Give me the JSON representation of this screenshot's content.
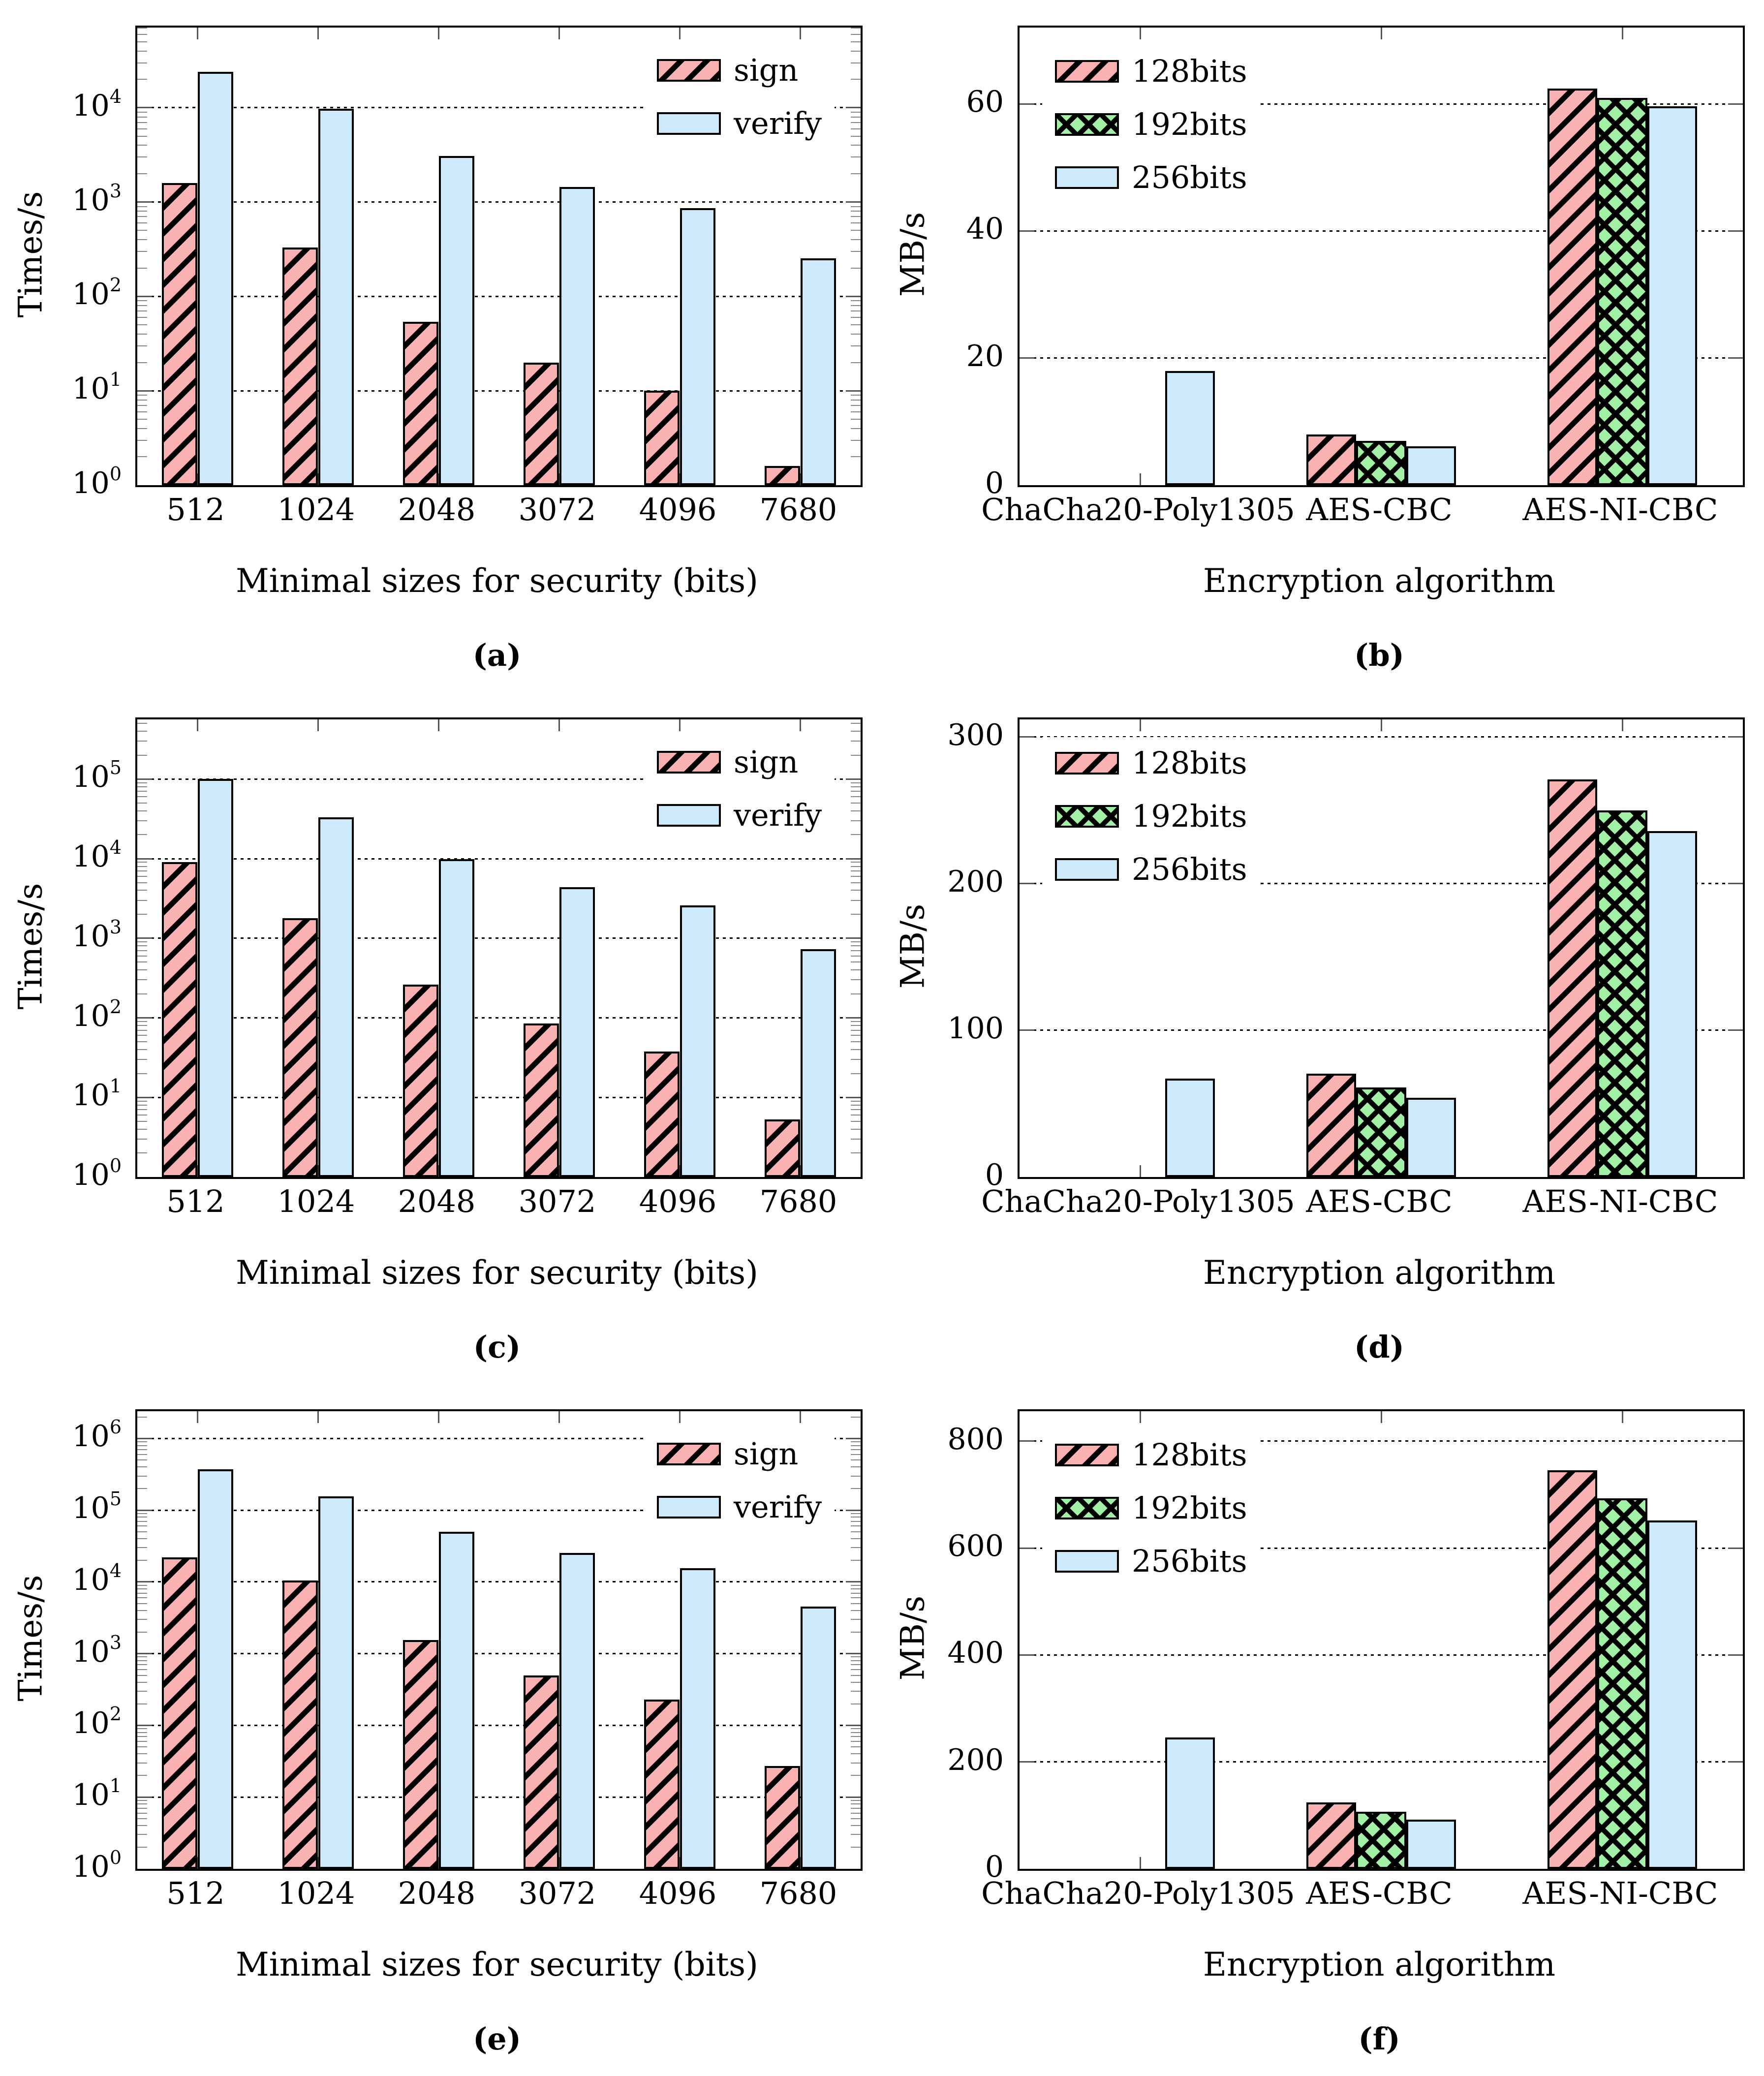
{
  "palette": {
    "sign_128_fill": "#F9B1B1",
    "bits192_fill": "#A2F0A6",
    "verify_256_fill": "#CEE9F9",
    "hatch_color": "#000000",
    "axis_color": "#000000",
    "background": "#FFFFFF"
  },
  "chart_data": [
    {
      "id": "a",
      "type": "bar",
      "scale": "log",
      "caption": "(a)",
      "ylabel": "Times/s",
      "xlabel": "Minimal sizes for security (bits)",
      "categories": [
        "512",
        "1024",
        "2048",
        "3072",
        "4096",
        "7680"
      ],
      "grid": "horizontal-dotted",
      "legend_position": "top-right",
      "y_ticks": [
        {
          "base": "10",
          "exp": "0"
        },
        {
          "base": "10",
          "exp": "1"
        },
        {
          "base": "10",
          "exp": "2"
        },
        {
          "base": "10",
          "exp": "3"
        },
        {
          "base": "10",
          "exp": "4"
        }
      ],
      "ylim_log10": [
        0,
        4.85
      ],
      "series": [
        {
          "name": "sign",
          "hatch": "diagonal",
          "fill": "#F9B1B1",
          "values": [
            1600,
            330,
            54,
            20,
            10,
            1.6
          ]
        },
        {
          "name": "verify",
          "hatch": "none",
          "fill": "#CEE9F9",
          "values": [
            24000,
            9800,
            3100,
            1450,
            860,
            255
          ]
        }
      ]
    },
    {
      "id": "b",
      "type": "bar",
      "scale": "linear",
      "caption": "(b)",
      "ylabel": "MB/s",
      "xlabel": "Encryption algorithm",
      "categories": [
        "ChaCha20-Poly1305",
        "AES-CBC",
        "AES-NI-CBC"
      ],
      "grid": "horizontal-dotted",
      "legend_position": "top-left",
      "y_ticks": [
        "0",
        "20",
        "40",
        "60"
      ],
      "y_tick_values": [
        0,
        20,
        40,
        60
      ],
      "ylim": [
        0,
        72
      ],
      "series": [
        {
          "name": "128bits",
          "hatch": "diagonal",
          "fill": "#F9B1B1",
          "values": [
            0,
            8,
            62.4
          ]
        },
        {
          "name": "192bits",
          "hatch": "cross",
          "fill": "#A2F0A6",
          "values": [
            0,
            7,
            60.9
          ]
        },
        {
          "name": "256bits",
          "hatch": "none",
          "fill": "#CEE9F9",
          "values": [
            18,
            6.1,
            59.6
          ]
        }
      ]
    },
    {
      "id": "c",
      "type": "bar",
      "scale": "log",
      "caption": "(c)",
      "ylabel": "Times/s",
      "xlabel": "Minimal sizes for security (bits)",
      "categories": [
        "512",
        "1024",
        "2048",
        "3072",
        "4096",
        "7680"
      ],
      "grid": "horizontal-dotted",
      "legend_position": "top-right",
      "y_ticks": [
        {
          "base": "10",
          "exp": "0"
        },
        {
          "base": "10",
          "exp": "1"
        },
        {
          "base": "10",
          "exp": "2"
        },
        {
          "base": "10",
          "exp": "3"
        },
        {
          "base": "10",
          "exp": "4"
        },
        {
          "base": "10",
          "exp": "5"
        }
      ],
      "ylim_log10": [
        0,
        5.75
      ],
      "series": [
        {
          "name": "sign",
          "hatch": "diagonal",
          "fill": "#F9B1B1",
          "values": [
            9000,
            1800,
            260,
            85,
            38,
            5.3
          ]
        },
        {
          "name": "verify",
          "hatch": "none",
          "fill": "#CEE9F9",
          "values": [
            100000,
            33000,
            9800,
            4400,
            2600,
            730
          ]
        }
      ]
    },
    {
      "id": "d",
      "type": "bar",
      "scale": "linear",
      "caption": "(d)",
      "ylabel": "MB/s",
      "xlabel": "Encryption algorithm",
      "categories": [
        "ChaCha20-Poly1305",
        "AES-CBC",
        "AES-NI-CBC"
      ],
      "grid": "horizontal-dotted",
      "legend_position": "top-left",
      "y_ticks": [
        "0",
        "100",
        "200",
        "300"
      ],
      "y_tick_values": [
        0,
        100,
        200,
        300
      ],
      "ylim": [
        0,
        312
      ],
      "series": [
        {
          "name": "128bits",
          "hatch": "diagonal",
          "fill": "#F9B1B1",
          "values": [
            0,
            70.5,
            271
          ]
        },
        {
          "name": "192bits",
          "hatch": "cross",
          "fill": "#A2F0A6",
          "values": [
            0,
            61,
            250
          ]
        },
        {
          "name": "256bits",
          "hatch": "none",
          "fill": "#CEE9F9",
          "values": [
            67,
            54,
            236
          ]
        }
      ]
    },
    {
      "id": "e",
      "type": "bar",
      "scale": "log",
      "caption": "(e)",
      "ylabel": "Times/s",
      "xlabel": "Minimal sizes for security (bits)",
      "categories": [
        "512",
        "1024",
        "2048",
        "3072",
        "4096",
        "7680"
      ],
      "grid": "horizontal-dotted",
      "legend_position": "top-right",
      "y_ticks": [
        {
          "base": "10",
          "exp": "0"
        },
        {
          "base": "10",
          "exp": "1"
        },
        {
          "base": "10",
          "exp": "2"
        },
        {
          "base": "10",
          "exp": "3"
        },
        {
          "base": "10",
          "exp": "4"
        },
        {
          "base": "10",
          "exp": "5"
        },
        {
          "base": "10",
          "exp": "6"
        }
      ],
      "ylim_log10": [
        0,
        6.38
      ],
      "series": [
        {
          "name": "sign",
          "hatch": "diagonal",
          "fill": "#F9B1B1",
          "values": [
            22000,
            10400,
            1550,
            500,
            230,
            27
          ]
        },
        {
          "name": "verify",
          "hatch": "none",
          "fill": "#CEE9F9",
          "values": [
            370000,
            155000,
            50000,
            25500,
            15500,
            4500
          ]
        }
      ]
    },
    {
      "id": "f",
      "type": "bar",
      "scale": "linear",
      "caption": "(f)",
      "ylabel": "MB/s",
      "xlabel": "Encryption algorithm",
      "categories": [
        "ChaCha20-Poly1305",
        "AES-CBC",
        "AES-NI-CBC"
      ],
      "grid": "horizontal-dotted",
      "legend_position": "top-left",
      "y_ticks": [
        "0",
        "200",
        "400",
        "600",
        "800"
      ],
      "y_tick_values": [
        0,
        200,
        400,
        600,
        800
      ],
      "ylim": [
        0,
        856
      ],
      "series": [
        {
          "name": "128bits",
          "hatch": "diagonal",
          "fill": "#F9B1B1",
          "values": [
            0,
            124,
            746
          ]
        },
        {
          "name": "192bits",
          "hatch": "cross",
          "fill": "#A2F0A6",
          "values": [
            0,
            107,
            693
          ]
        },
        {
          "name": "256bits",
          "hatch": "none",
          "fill": "#CEE9F9",
          "values": [
            246,
            92,
            652
          ]
        }
      ]
    }
  ]
}
